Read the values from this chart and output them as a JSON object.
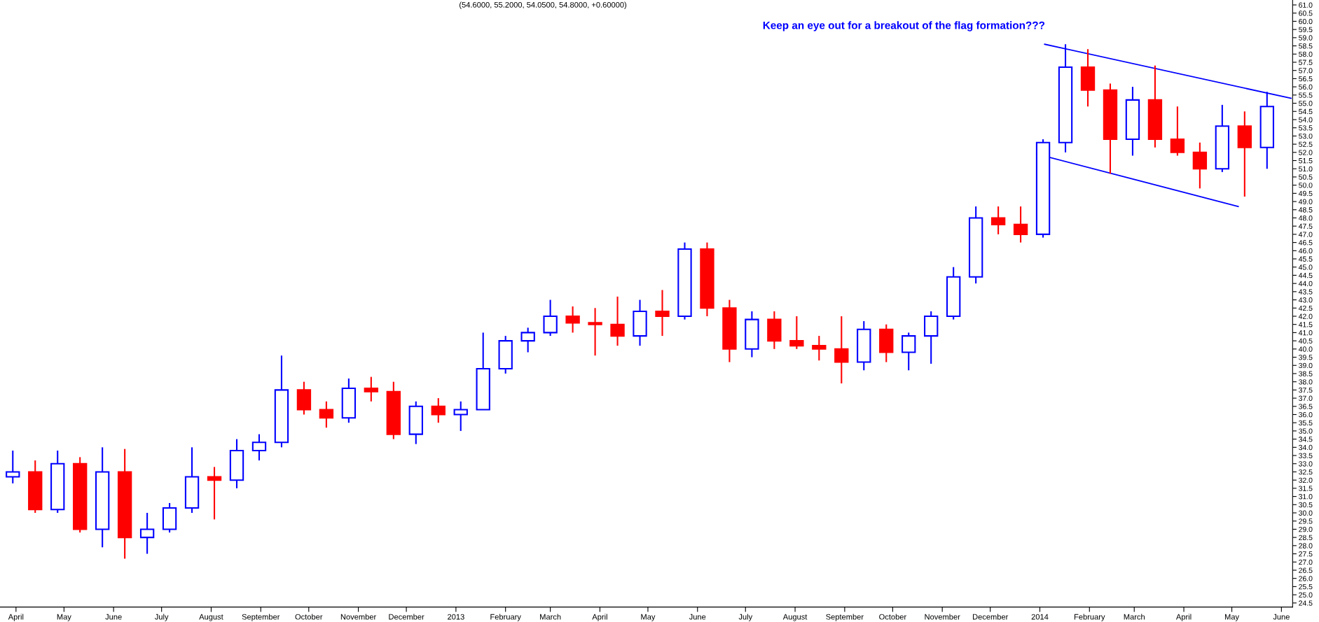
{
  "chart_data": {
    "type": "candlestick",
    "title": "(54.6000, 55.2000, 54.0500, 54.8000, +0.60000)",
    "annotations": [
      "Keep an eye out for a breakout of the flag formation???"
    ],
    "x": [
      "2012-03-30",
      "2012-04-13",
      "2012-04-27",
      "2012-05-11",
      "2012-05-25",
      "2012-06-08",
      "2012-06-22",
      "2012-07-06",
      "2012-07-20",
      "2012-08-03",
      "2012-08-17",
      "2012-08-31",
      "2012-09-14",
      "2012-09-28",
      "2012-10-12",
      "2012-10-26",
      "2012-11-09",
      "2012-11-23",
      "2012-12-07",
      "2012-12-21",
      "2013-01-04",
      "2013-01-18",
      "2013-02-01",
      "2013-02-15",
      "2013-03-01",
      "2013-03-15",
      "2013-03-29",
      "2013-04-12",
      "2013-04-26",
      "2013-05-10",
      "2013-05-24",
      "2013-06-07",
      "2013-06-21",
      "2013-07-05",
      "2013-07-19",
      "2013-08-02",
      "2013-08-16",
      "2013-08-30",
      "2013-09-13",
      "2013-09-27",
      "2013-10-11",
      "2013-10-25",
      "2013-11-08",
      "2013-11-22",
      "2013-12-06",
      "2013-12-20",
      "2014-01-03",
      "2014-01-17",
      "2014-01-31",
      "2014-02-14",
      "2014-02-28",
      "2014-03-14",
      "2014-03-28",
      "2014-04-11",
      "2014-04-25",
      "2014-05-09",
      "2014-05-23"
    ],
    "ohlc": [
      [
        32.2,
        33.8,
        31.8,
        32.5
      ],
      [
        32.5,
        33.2,
        30.0,
        30.2
      ],
      [
        30.2,
        33.8,
        30.0,
        33.0
      ],
      [
        33.0,
        33.4,
        28.8,
        29.0
      ],
      [
        29.0,
        34.0,
        27.9,
        32.5
      ],
      [
        32.5,
        33.9,
        27.2,
        28.5
      ],
      [
        28.5,
        30.0,
        27.5,
        29.0
      ],
      [
        29.0,
        30.6,
        28.8,
        30.3
      ],
      [
        30.3,
        34.0,
        30.0,
        32.2
      ],
      [
        32.2,
        32.8,
        29.6,
        32.0
      ],
      [
        32.0,
        34.5,
        31.5,
        33.8
      ],
      [
        33.8,
        34.8,
        33.2,
        34.3
      ],
      [
        34.3,
        39.6,
        34.0,
        37.5
      ],
      [
        37.5,
        38.0,
        36.0,
        36.3
      ],
      [
        36.3,
        36.8,
        35.2,
        35.8
      ],
      [
        35.8,
        38.2,
        35.5,
        37.6
      ],
      [
        37.6,
        38.3,
        36.8,
        37.4
      ],
      [
        37.4,
        38.0,
        34.5,
        34.8
      ],
      [
        34.8,
        36.8,
        34.2,
        36.5
      ],
      [
        36.5,
        37.0,
        35.5,
        36.0
      ],
      [
        36.0,
        36.8,
        35.0,
        36.3
      ],
      [
        36.3,
        41.0,
        36.3,
        38.8
      ],
      [
        38.8,
        40.8,
        38.5,
        40.5
      ],
      [
        40.5,
        41.3,
        39.8,
        41.0
      ],
      [
        41.0,
        43.0,
        40.8,
        42.0
      ],
      [
        42.0,
        42.6,
        41.0,
        41.6
      ],
      [
        41.6,
        42.5,
        39.6,
        41.5
      ],
      [
        41.5,
        43.2,
        40.2,
        40.8
      ],
      [
        40.8,
        43.0,
        40.2,
        42.3
      ],
      [
        42.3,
        43.6,
        40.8,
        42.0
      ],
      [
        42.0,
        46.5,
        41.8,
        46.1
      ],
      [
        46.1,
        46.5,
        42.0,
        42.5
      ],
      [
        42.5,
        43.0,
        39.2,
        40.0
      ],
      [
        40.0,
        42.3,
        39.5,
        41.8
      ],
      [
        41.8,
        42.3,
        40.0,
        40.5
      ],
      [
        40.5,
        42.0,
        40.0,
        40.2
      ],
      [
        40.2,
        40.8,
        39.3,
        40.0
      ],
      [
        40.0,
        42.0,
        37.9,
        39.2
      ],
      [
        39.2,
        41.7,
        38.7,
        41.2
      ],
      [
        41.2,
        41.5,
        39.2,
        39.8
      ],
      [
        39.8,
        41.0,
        38.7,
        40.8
      ],
      [
        40.8,
        42.3,
        39.1,
        42.0
      ],
      [
        42.0,
        45.0,
        41.8,
        44.4
      ],
      [
        44.4,
        48.7,
        44.0,
        48.0
      ],
      [
        48.0,
        48.7,
        47.0,
        47.6
      ],
      [
        47.6,
        48.7,
        46.5,
        47.0
      ],
      [
        47.0,
        52.8,
        46.8,
        52.6
      ],
      [
        52.6,
        58.6,
        52.0,
        57.2
      ],
      [
        57.2,
        58.3,
        54.8,
        55.8
      ],
      [
        55.8,
        56.2,
        50.7,
        52.8
      ],
      [
        52.8,
        56.0,
        51.8,
        55.2
      ],
      [
        55.2,
        57.3,
        52.3,
        52.8
      ],
      [
        52.8,
        54.8,
        51.8,
        52.0
      ],
      [
        52.0,
        52.6,
        49.8,
        51.0
      ],
      [
        51.0,
        54.9,
        50.8,
        53.6
      ],
      [
        53.6,
        54.5,
        49.3,
        52.3
      ],
      [
        52.3,
        55.7,
        51.0,
        54.8
      ]
    ],
    "colors": [
      "#0000ff",
      "#ff0000",
      "#0000ff",
      "#ff0000",
      "#0000ff",
      "#ff0000",
      "#0000ff",
      "#0000ff",
      "#0000ff",
      "#ff0000",
      "#0000ff",
      "#0000ff",
      "#0000ff",
      "#ff0000",
      "#ff0000",
      "#0000ff",
      "#ff0000",
      "#ff0000",
      "#0000ff",
      "#ff0000",
      "#0000ff",
      "#0000ff",
      "#0000ff",
      "#0000ff",
      "#0000ff",
      "#ff0000",
      "#ff0000",
      "#ff0000",
      "#0000ff",
      "#ff0000",
      "#0000ff",
      "#ff0000",
      "#ff0000",
      "#0000ff",
      "#ff0000",
      "#ff0000",
      "#ff0000",
      "#ff0000",
      "#0000ff",
      "#ff0000",
      "#0000ff",
      "#0000ff",
      "#0000ff",
      "#0000ff",
      "#ff0000",
      "#ff0000",
      "#0000ff",
      "#0000ff",
      "#ff0000",
      "#ff0000",
      "#0000ff",
      "#ff0000",
      "#ff0000",
      "#ff0000",
      "#0000ff",
      "#ff0000",
      "#0000ff"
    ],
    "series": [
      {
        "type": "line",
        "color": "#0000ff",
        "x": [
          "2014-01-04",
          "2014-06-07"
        ],
        "values": [
          58.6,
          55.3
        ]
      },
      {
        "type": "line",
        "color": "#0000ff",
        "x": [
          "2013-12-30",
          "2014-05-05"
        ],
        "values": [
          51.9,
          48.7
        ]
      }
    ],
    "xlim": [
      "2012-03-22",
      "2014-06-08"
    ],
    "xticks": [
      {
        "value": "2012-04-01",
        "label": "April"
      },
      {
        "value": "2012-05-01",
        "label": "May"
      },
      {
        "value": "2012-06-01",
        "label": "June"
      },
      {
        "value": "2012-07-01",
        "label": "July"
      },
      {
        "value": "2012-08-01",
        "label": "August"
      },
      {
        "value": "2012-09-01",
        "label": "September"
      },
      {
        "value": "2012-10-01",
        "label": "October"
      },
      {
        "value": "2012-11-01",
        "label": "November"
      },
      {
        "value": "2012-12-01",
        "label": "December"
      },
      {
        "value": "2013-01-01",
        "label": "2013"
      },
      {
        "value": "2013-02-01",
        "label": "February"
      },
      {
        "value": "2013-03-01",
        "label": "March"
      },
      {
        "value": "2013-04-01",
        "label": "April"
      },
      {
        "value": "2013-05-01",
        "label": "May"
      },
      {
        "value": "2013-06-01",
        "label": "June"
      },
      {
        "value": "2013-07-01",
        "label": "July"
      },
      {
        "value": "2013-08-01",
        "label": "August"
      },
      {
        "value": "2013-09-01",
        "label": "September"
      },
      {
        "value": "2013-10-01",
        "label": "October"
      },
      {
        "value": "2013-11-01",
        "label": "November"
      },
      {
        "value": "2013-12-01",
        "label": "December"
      },
      {
        "value": "2014-01-01",
        "label": "2014"
      },
      {
        "value": "2014-02-01",
        "label": "February"
      },
      {
        "value": "2014-03-01",
        "label": "March"
      },
      {
        "value": "2014-04-01",
        "label": "April"
      },
      {
        "value": "2014-05-01",
        "label": "May"
      },
      {
        "value": "2014-06-01",
        "label": "June"
      }
    ],
    "ylim": [
      24.25,
      61.3
    ],
    "yticks": [
      24.5,
      {
        "value": 25,
        "label": "25.0"
      },
      25.5,
      {
        "value": 26,
        "label": "26.0"
      },
      26.5,
      {
        "value": 27,
        "label": "27.0"
      },
      27.5,
      {
        "value": 28,
        "label": "28.0"
      },
      28.5,
      {
        "value": 29,
        "label": "29.0"
      },
      29.5,
      {
        "value": 30,
        "label": "30.0"
      },
      30.5,
      {
        "value": 31,
        "label": "31.0"
      },
      31.5,
      {
        "value": 32,
        "label": "32.0"
      },
      32.5,
      {
        "value": 33,
        "label": "33.0"
      },
      33.5,
      {
        "value": 34,
        "label": "34.0"
      },
      34.5,
      {
        "value": 35,
        "label": "35.0"
      },
      35.5,
      {
        "value": 36,
        "label": "36.0"
      },
      36.5,
      {
        "value": 37,
        "label": "37.0"
      },
      37.5,
      {
        "value": 38,
        "label": "38.0"
      },
      38.5,
      {
        "value": 39,
        "label": "39.0"
      },
      39.5,
      {
        "value": 40,
        "label": "40.0"
      },
      40.5,
      {
        "value": 41,
        "label": "41.0"
      },
      41.5,
      {
        "value": 42,
        "label": "42.0"
      },
      42.5,
      {
        "value": 43,
        "label": "43.0"
      },
      43.5,
      {
        "value": 44,
        "label": "44.0"
      },
      44.5,
      {
        "value": 45,
        "label": "45.0"
      },
      45.5,
      {
        "value": 46,
        "label": "46.0"
      },
      46.5,
      {
        "value": 47,
        "label": "47.0"
      },
      47.5,
      {
        "value": 48,
        "label": "48.0"
      },
      48.5,
      {
        "value": 49,
        "label": "49.0"
      },
      49.5,
      {
        "value": 50,
        "label": "50.0"
      },
      50.5,
      {
        "value": 51,
        "label": "51.0"
      },
      51.5,
      {
        "value": 52,
        "label": "52.0"
      },
      52.5,
      {
        "value": 53,
        "label": "53.0"
      },
      53.5,
      {
        "value": 54,
        "label": "54.0"
      },
      54.5,
      {
        "value": 55,
        "label": "55.0"
      },
      55.5,
      {
        "value": 56,
        "label": "56.0"
      },
      56.5,
      {
        "value": 57,
        "label": "57.0"
      },
      57.5,
      {
        "value": 58,
        "label": "58.0"
      },
      58.5,
      {
        "value": 59,
        "label": "59.0"
      },
      59.5,
      {
        "value": 60,
        "label": "60.0"
      },
      60.5,
      {
        "value": 61,
        "label": "61.0"
      }
    ],
    "grid": false
  }
}
